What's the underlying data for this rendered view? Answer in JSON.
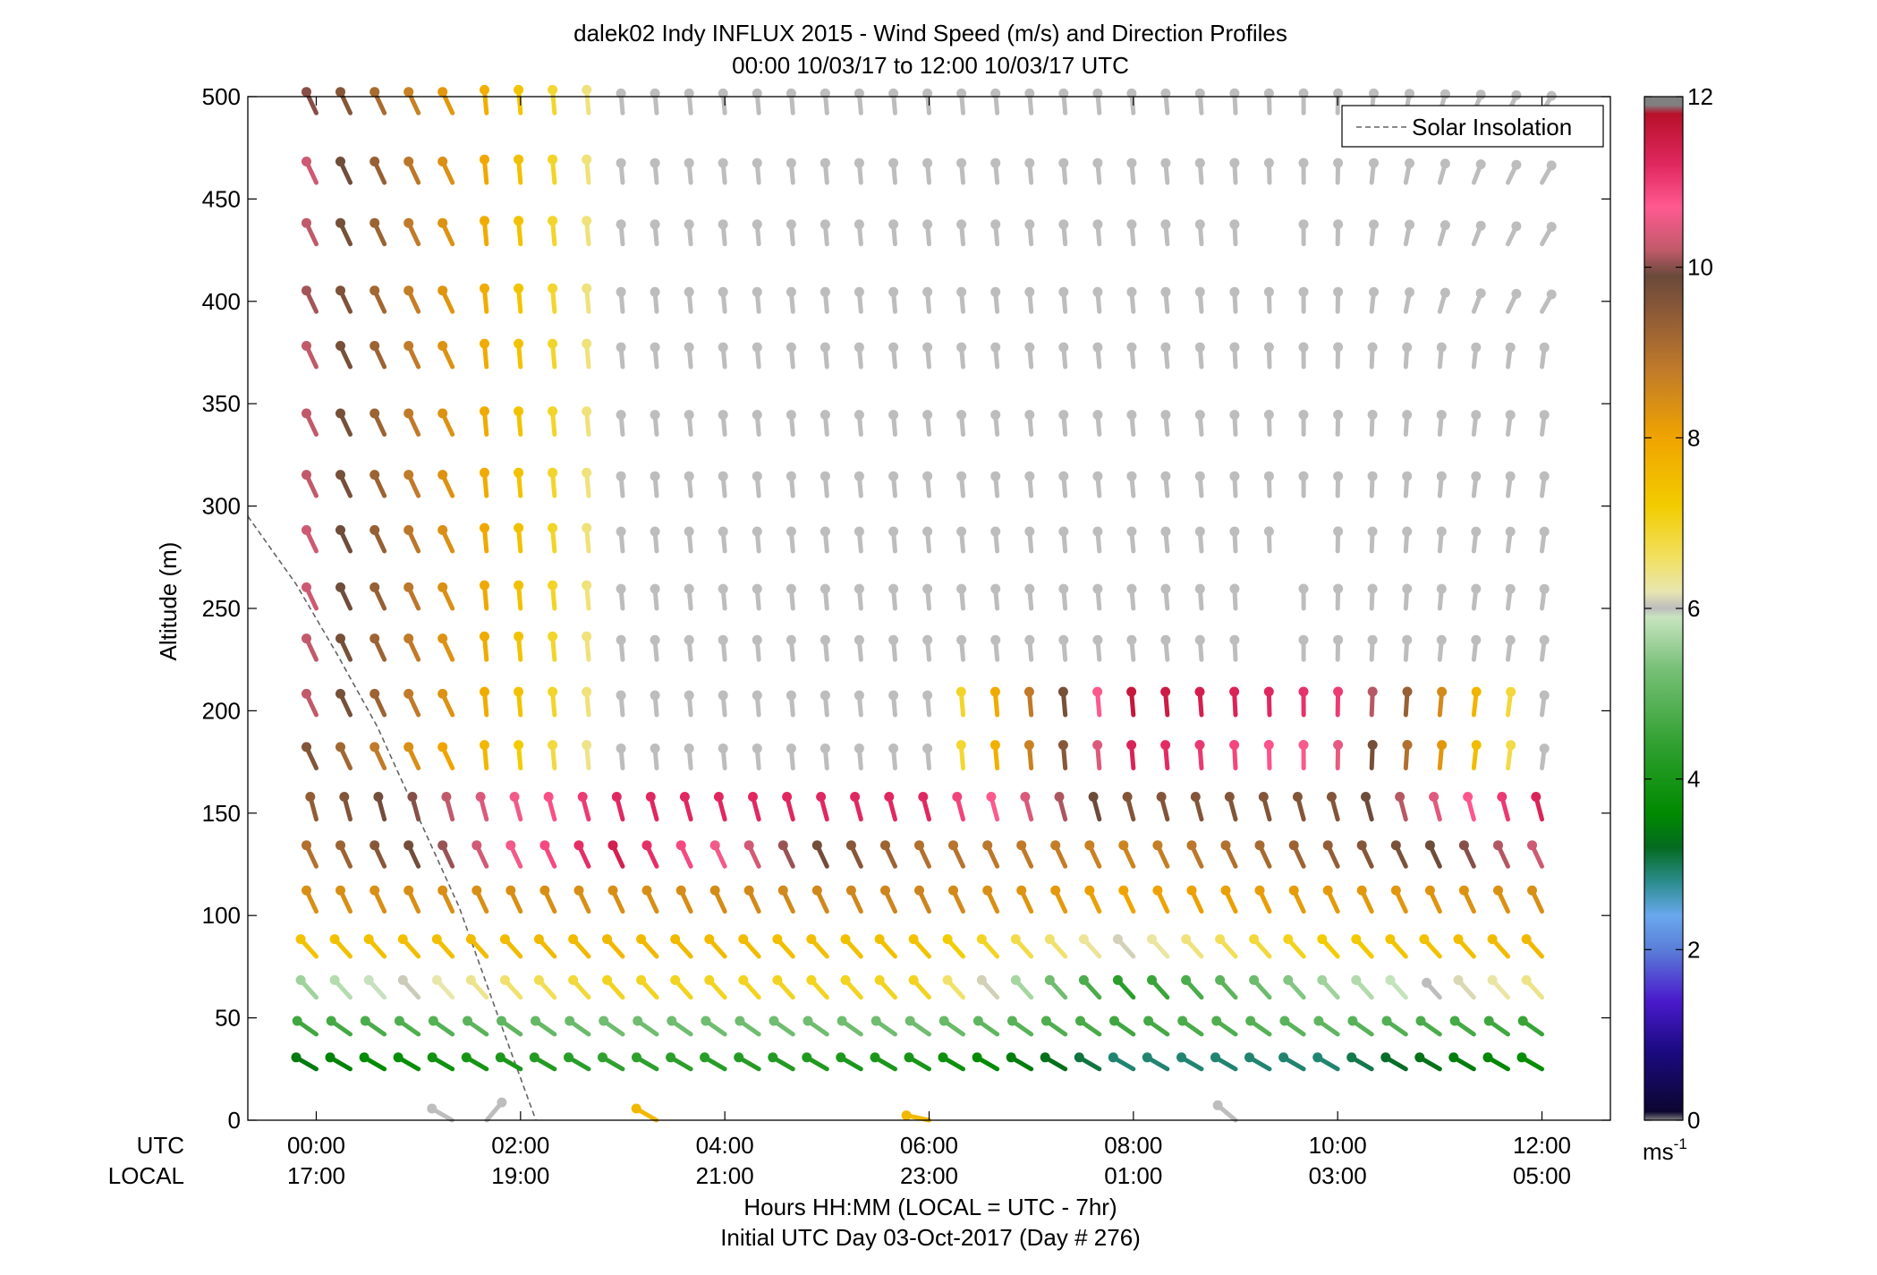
{
  "chart_data": {
    "type": "quiver",
    "title": "dalek02 Indy INFLUX 2015 - Wind Speed (m/s) and Direction Profiles",
    "subtitle": "00:00 10/03/17 to 12:00 10/03/17  UTC",
    "ylabel": "Altitude (m)",
    "xlabel": "Hours HH:MM  (LOCAL = UTC - 7hr)",
    "xlabel2": "Initial UTC Day 03-Oct-2017 (Day # 276)",
    "row_label_utc": "UTC",
    "row_label_local": "LOCAL",
    "xlim": [
      -0.67,
      12.67
    ],
    "ylim": [
      0,
      500
    ],
    "yticks": [
      0,
      50,
      100,
      150,
      200,
      250,
      300,
      350,
      400,
      450,
      500
    ],
    "xticks_hours": [
      0,
      2,
      4,
      6,
      8,
      10,
      12
    ],
    "xtick_utc": [
      "00:00",
      "02:00",
      "04:00",
      "06:00",
      "08:00",
      "10:00",
      "12:00"
    ],
    "xtick_local": [
      "17:00",
      "19:00",
      "21:00",
      "23:00",
      "01:00",
      "03:00",
      "05:00"
    ],
    "legend": {
      "label": "Solar Insolation",
      "placement": "top-right",
      "line_color": "#646464"
    },
    "colorbar": {
      "unit": "ms",
      "unit_exp": "-1",
      "range": [
        0,
        12
      ],
      "ticks": [
        0,
        2,
        4,
        6,
        8,
        10,
        12
      ],
      "stops": [
        {
          "v": 0.0,
          "c": "#808080"
        },
        {
          "v": 0.1,
          "c": "#0c0630"
        },
        {
          "v": 0.8,
          "c": "#1a0a80"
        },
        {
          "v": 1.4,
          "c": "#4a1acc"
        },
        {
          "v": 2.0,
          "c": "#5a7ed8"
        },
        {
          "v": 2.4,
          "c": "#6aa8ee"
        },
        {
          "v": 2.8,
          "c": "#2a8c8c"
        },
        {
          "v": 3.2,
          "c": "#046a20"
        },
        {
          "v": 3.6,
          "c": "#008a00"
        },
        {
          "v": 4.4,
          "c": "#30a030"
        },
        {
          "v": 5.3,
          "c": "#78c078"
        },
        {
          "v": 5.9,
          "c": "#c8e4c0"
        },
        {
          "v": 6.0,
          "c": "#bdbdbd"
        },
        {
          "v": 6.2,
          "c": "#e8e6b0"
        },
        {
          "v": 6.6,
          "c": "#f2e060"
        },
        {
          "v": 7.2,
          "c": "#f2cc00"
        },
        {
          "v": 8.0,
          "c": "#f0a400"
        },
        {
          "v": 8.8,
          "c": "#c07a2a"
        },
        {
          "v": 9.5,
          "c": "#8a5838"
        },
        {
          "v": 9.9,
          "c": "#6a4a3a"
        },
        {
          "v": 10.2,
          "c": "#c05a6a"
        },
        {
          "v": 10.7,
          "c": "#ff5a90"
        },
        {
          "v": 11.2,
          "c": "#e02860"
        },
        {
          "v": 11.8,
          "c": "#b8102a"
        },
        {
          "v": 11.9,
          "c": "#808080"
        },
        {
          "v": 12.0,
          "c": "#808080"
        }
      ]
    },
    "solar_insolation_curve": [
      [
        -0.67,
        295
      ],
      [
        -0.2,
        262
      ],
      [
        0.2,
        228
      ],
      [
        0.6,
        192
      ],
      [
        1.0,
        148
      ],
      [
        1.4,
        104
      ],
      [
        1.8,
        48
      ],
      [
        2.15,
        0
      ]
    ],
    "column_times_hours": [
      0.0,
      0.333,
      0.667,
      1.0,
      1.333,
      1.667,
      2.0,
      2.333,
      2.667,
      3.0,
      3.333,
      3.667,
      4.0,
      4.333,
      4.667,
      5.0,
      5.333,
      5.667,
      6.0,
      6.333,
      6.667,
      7.0,
      7.333,
      7.667,
      8.0,
      8.333,
      8.667,
      9.0,
      9.333,
      9.667,
      10.0,
      10.333,
      10.667,
      11.0,
      11.333,
      11.667,
      12.0
    ],
    "altitudes_m": [
      25,
      42,
      60,
      80,
      102,
      124,
      147,
      172,
      198,
      225,
      250,
      278,
      305,
      335,
      368,
      395,
      428,
      458,
      492
    ],
    "vector_direction_convention": "angle in degrees clockwise from up, direction the vector head points (estimated from figure)",
    "speed_columns": [
      {
        "t": 0.0,
        "speeds": [
          3.4,
          4.6,
          5.6,
          7.4,
          8.4,
          9.0,
          9.4,
          9.6,
          10.2,
          10.2,
          10.3,
          10.3,
          10.2,
          10.2,
          10.2,
          10.1,
          10.2,
          10.3,
          10.0
        ]
      },
      {
        "t": 3.0,
        "speeds": [
          4.4,
          5.2,
          7.0,
          7.6,
          8.4,
          11.4,
          11.2,
          6.0,
          6.0,
          6.0,
          6.0,
          6.0,
          6.0,
          6.0,
          6.0,
          6.0,
          6.0,
          6.0,
          6.0
        ]
      },
      {
        "t": 6.0,
        "speeds": [
          4.0,
          5.2,
          7.0,
          7.4,
          8.6,
          9.0,
          11.2,
          6.0,
          6.0,
          6.0,
          6.0,
          6.0,
          6.0,
          6.0,
          6.0,
          6.0,
          6.0,
          6.0,
          6.0
        ]
      },
      {
        "t": 8.0,
        "speeds": [
          2.9,
          4.6,
          4.3,
          6.1,
          8.0,
          8.6,
          9.6,
          11.3,
          11.6,
          6.0,
          6.0,
          6.0,
          6.0,
          6.0,
          6.0,
          6.0,
          6.0,
          6.0,
          6.0
        ]
      },
      {
        "t": 10.0,
        "speeds": [
          2.9,
          5.0,
          5.6,
          7.2,
          8.2,
          9.4,
          9.6,
          10.5,
          11.0,
          6.0,
          6.0,
          6.0,
          6.0,
          6.0,
          6.0,
          6.0,
          6.0,
          6.0,
          6.0
        ]
      },
      {
        "t": 12.0,
        "speeds": [
          3.7,
          4.5,
          6.4,
          7.6,
          8.4,
          10.3,
          11.3,
          6.0,
          6.0,
          6.0,
          6.0,
          6.0,
          6.0,
          6.0,
          6.0,
          6.0,
          6.0,
          6.0,
          6.0
        ]
      }
    ],
    "surface_vectors": [
      {
        "t": 1.33,
        "alt": 0,
        "angle": 300,
        "speed": 6.0
      },
      {
        "t": 1.67,
        "alt": 0,
        "angle": 40,
        "speed": 6.0
      },
      {
        "t": 3.33,
        "alt": 0,
        "angle": 300,
        "speed": 7.6
      },
      {
        "t": 6.0,
        "alt": 0,
        "angle": 282,
        "speed": 7.6
      },
      {
        "t": 9.0,
        "alt": 0,
        "angle": 310,
        "speed": 6.0
      }
    ],
    "missing_points": [
      [
        9.33,
        250
      ],
      [
        9.33,
        225
      ],
      [
        9.67,
        278
      ],
      [
        9.67,
        478
      ],
      [
        9.33,
        428
      ]
    ]
  }
}
